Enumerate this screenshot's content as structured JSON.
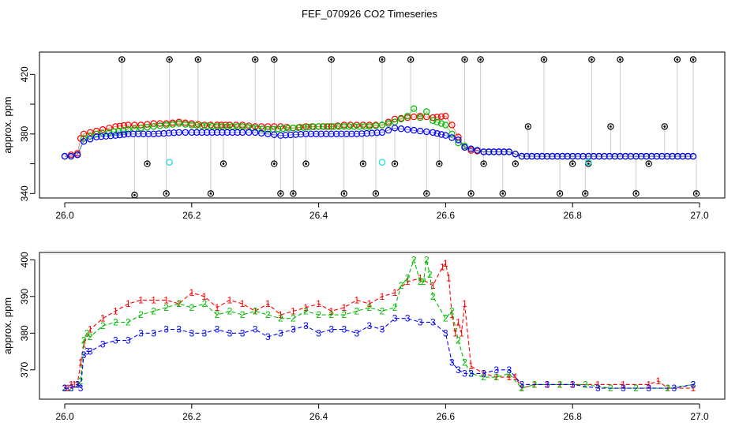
{
  "title": "FEF_070926  CO2 Timeseries",
  "colors": {
    "series1": "#ff0000",
    "series2": "#00bb00",
    "series3": "#0000ff",
    "outlier": "#000000",
    "flag": "#33dddd",
    "connector": "#999999"
  },
  "chart_data": [
    {
      "type": "scatter",
      "ylabel": "approx. ppm",
      "xlabel": "",
      "xlim": [
        26.0,
        27.0
      ],
      "ylim": [
        337,
        435
      ],
      "x_ticks": [
        26.0,
        26.2,
        26.4,
        26.6,
        26.8,
        27.0
      ],
      "x_tick_labels": [
        "26.0",
        "26.2",
        "26.4",
        "26.6",
        "26.8",
        "27.0"
      ],
      "y_ticks": [
        340,
        360,
        380,
        400,
        420
      ],
      "y_tick_labels": [
        "340",
        "",
        "380",
        "",
        "420"
      ],
      "marker": "circle",
      "series": [
        {
          "name": "1",
          "color": "#ff0000",
          "points": [
            [
              26.0,
              365
            ],
            [
              26.01,
              366
            ],
            [
              26.02,
              367
            ],
            [
              26.025,
              377
            ],
            [
              26.03,
              380
            ],
            [
              26.04,
              381
            ],
            [
              26.06,
              383
            ],
            [
              26.08,
              385
            ],
            [
              26.1,
              386
            ],
            [
              26.12,
              386
            ],
            [
              26.14,
              387
            ],
            [
              26.16,
              387
            ],
            [
              26.18,
              388
            ],
            [
              26.2,
              387
            ],
            [
              26.22,
              386
            ],
            [
              26.24,
              386
            ],
            [
              26.26,
              386
            ],
            [
              26.28,
              386
            ],
            [
              26.3,
              385
            ],
            [
              26.32,
              385
            ],
            [
              26.34,
              385
            ],
            [
              26.36,
              384
            ],
            [
              26.38,
              385
            ],
            [
              26.4,
              385
            ],
            [
              26.42,
              385
            ],
            [
              26.44,
              386
            ],
            [
              26.46,
              386
            ],
            [
              26.48,
              386
            ],
            [
              26.5,
              386
            ],
            [
              26.52,
              390
            ],
            [
              26.54,
              391
            ],
            [
              26.56,
              392
            ],
            [
              26.58,
              391
            ],
            [
              26.6,
              392
            ],
            [
              26.61,
              386
            ],
            [
              26.62,
              378
            ],
            [
              26.63,
              371
            ],
            [
              26.64,
              369
            ],
            [
              26.66,
              368
            ],
            [
              26.7,
              368
            ],
            [
              26.72,
              365
            ],
            [
              26.8,
              365
            ],
            [
              26.9,
              365
            ],
            [
              26.99,
              365
            ]
          ]
        },
        {
          "name": "2",
          "color": "#00bb00",
          "points": [
            [
              26.0,
              365
            ],
            [
              26.01,
              365
            ],
            [
              26.02,
              366
            ],
            [
              26.03,
              377
            ],
            [
              26.05,
              380
            ],
            [
              26.07,
              381
            ],
            [
              26.1,
              383
            ],
            [
              26.12,
              384
            ],
            [
              26.14,
              385
            ],
            [
              26.16,
              386
            ],
            [
              26.18,
              387
            ],
            [
              26.2,
              386
            ],
            [
              26.24,
              385
            ],
            [
              26.28,
              385
            ],
            [
              26.32,
              383
            ],
            [
              26.36,
              384
            ],
            [
              26.4,
              385
            ],
            [
              26.44,
              385
            ],
            [
              26.48,
              385
            ],
            [
              26.5,
              386
            ],
            [
              26.52,
              388
            ],
            [
              26.54,
              392
            ],
            [
              26.55,
              397
            ],
            [
              26.56,
              391
            ],
            [
              26.57,
              395
            ],
            [
              26.58,
              389
            ],
            [
              26.6,
              386
            ],
            [
              26.61,
              380
            ],
            [
              26.62,
              374
            ],
            [
              26.64,
              370
            ],
            [
              26.66,
              368
            ],
            [
              26.7,
              368
            ],
            [
              26.72,
              365
            ],
            [
              26.8,
              365
            ],
            [
              26.9,
              365
            ],
            [
              26.99,
              365
            ]
          ]
        },
        {
          "name": "3",
          "color": "#0000ff",
          "points": [
            [
              26.0,
              365
            ],
            [
              26.01,
              365
            ],
            [
              26.02,
              366
            ],
            [
              26.03,
              375
            ],
            [
              26.05,
              378
            ],
            [
              26.08,
              379
            ],
            [
              26.1,
              380
            ],
            [
              26.14,
              380
            ],
            [
              26.18,
              381
            ],
            [
              26.2,
              381
            ],
            [
              26.24,
              381
            ],
            [
              26.28,
              381
            ],
            [
              26.3,
              381
            ],
            [
              26.32,
              380
            ],
            [
              26.34,
              379
            ],
            [
              26.38,
              380
            ],
            [
              26.42,
              380
            ],
            [
              26.46,
              380
            ],
            [
              26.5,
              381
            ],
            [
              26.52,
              384
            ],
            [
              26.54,
              383
            ],
            [
              26.56,
              382
            ],
            [
              26.58,
              381
            ],
            [
              26.6,
              379
            ],
            [
              26.62,
              376
            ],
            [
              26.63,
              371
            ],
            [
              26.64,
              370
            ],
            [
              26.66,
              368
            ],
            [
              26.7,
              368
            ],
            [
              26.72,
              365
            ],
            [
              26.8,
              365
            ],
            [
              26.9,
              365
            ],
            [
              26.99,
              365
            ]
          ]
        },
        {
          "name": "outliers",
          "color": "#000000",
          "points": [
            [
              26.09,
              430
            ],
            [
              26.11,
              339
            ],
            [
              26.13,
              360
            ],
            [
              26.16,
              340
            ],
            [
              26.165,
              430
            ],
            [
              26.21,
              430
            ],
            [
              26.23,
              340
            ],
            [
              26.25,
              360
            ],
            [
              26.3,
              430
            ],
            [
              26.33,
              430
            ],
            [
              26.33,
              360
            ],
            [
              26.34,
              340
            ],
            [
              26.36,
              340
            ],
            [
              26.38,
              360
            ],
            [
              26.42,
              430
            ],
            [
              26.44,
              340
            ],
            [
              26.47,
              360
            ],
            [
              26.49,
              340
            ],
            [
              26.5,
              430
            ],
            [
              26.52,
              360
            ],
            [
              26.545,
              430
            ],
            [
              26.57,
              340
            ],
            [
              26.59,
              360
            ],
            [
              26.63,
              430
            ],
            [
              26.64,
              340
            ],
            [
              26.655,
              430
            ],
            [
              26.66,
              360
            ],
            [
              26.69,
              340
            ],
            [
              26.71,
              360
            ],
            [
              26.73,
              385
            ],
            [
              26.755,
              430
            ],
            [
              26.78,
              340
            ],
            [
              26.8,
              360
            ],
            [
              26.82,
              340
            ],
            [
              26.825,
              360
            ],
            [
              26.83,
              430
            ],
            [
              26.86,
              385
            ],
            [
              26.875,
              430
            ],
            [
              26.9,
              340
            ],
            [
              26.92,
              360
            ],
            [
              26.945,
              385
            ],
            [
              26.965,
              430
            ],
            [
              26.99,
              430
            ],
            [
              26.995,
              340
            ]
          ]
        },
        {
          "name": "flagged",
          "color": "#33dddd",
          "points": [
            [
              26.165,
              361
            ],
            [
              26.5,
              361
            ],
            [
              26.825,
              361
            ]
          ]
        }
      ]
    },
    {
      "type": "line",
      "ylabel": "approx. ppm",
      "xlabel": "",
      "xlim": [
        26.0,
        27.0
      ],
      "ylim": [
        362,
        402
      ],
      "x_ticks": [
        26.0,
        26.2,
        26.4,
        26.6,
        26.8,
        27.0
      ],
      "x_tick_labels": [
        "26.0",
        "26.2",
        "26.4",
        "26.6",
        "26.8",
        "27.0"
      ],
      "y_ticks": [
        370,
        380,
        390,
        400
      ],
      "y_tick_labels": [
        "370",
        "380",
        "390",
        "400"
      ],
      "marker": "series number",
      "series": [
        {
          "name": "1",
          "color": "#ff0000",
          "x": [
            26.0,
            26.005,
            26.01,
            26.015,
            26.02,
            26.025,
            26.03,
            26.04,
            26.06,
            26.08,
            26.1,
            26.12,
            26.14,
            26.16,
            26.18,
            26.2,
            26.22,
            26.24,
            26.26,
            26.28,
            26.3,
            26.32,
            26.34,
            26.36,
            26.38,
            26.4,
            26.42,
            26.44,
            26.46,
            26.48,
            26.5,
            26.52,
            26.54,
            26.56,
            26.58,
            26.595,
            26.6,
            26.605,
            26.61,
            26.615,
            26.62,
            26.625,
            26.63,
            26.64,
            26.66,
            26.68,
            26.7,
            26.71,
            26.72,
            26.74,
            26.76,
            26.78,
            26.8,
            26.84,
            26.88,
            26.92,
            26.935,
            26.95,
            26.99
          ],
          "y": [
            365,
            365,
            366,
            366,
            366,
            372,
            377,
            381,
            384,
            386,
            388,
            389,
            389,
            389,
            388,
            391,
            390,
            387,
            389,
            388,
            386,
            388,
            385,
            386,
            387,
            388,
            386,
            387,
            389,
            388,
            390,
            391,
            394,
            395,
            393,
            398,
            399,
            395,
            385,
            380,
            383,
            380,
            388,
            371,
            369,
            368,
            368,
            368,
            365,
            366,
            366,
            366,
            366,
            366,
            366,
            366,
            367,
            365,
            365
          ]
        },
        {
          "name": "2",
          "color": "#00bb00",
          "x": [
            26.0,
            26.01,
            26.02,
            26.025,
            26.03,
            26.035,
            26.04,
            26.06,
            26.08,
            26.1,
            26.12,
            26.14,
            26.16,
            26.18,
            26.2,
            26.22,
            26.24,
            26.26,
            26.28,
            26.3,
            26.32,
            26.34,
            26.36,
            26.38,
            26.4,
            26.42,
            26.44,
            26.46,
            26.48,
            26.5,
            26.52,
            26.53,
            26.54,
            26.55,
            26.56,
            26.565,
            26.57,
            26.575,
            26.58,
            26.6,
            26.61,
            26.62,
            26.63,
            26.64,
            26.66,
            26.68,
            26.7,
            26.72,
            26.74,
            26.78,
            26.82,
            26.86,
            26.9,
            26.95,
            26.99
          ],
          "y": [
            365,
            365,
            366,
            367,
            378,
            380,
            379,
            382,
            383,
            383,
            385,
            386,
            387,
            388,
            387,
            388,
            385,
            386,
            385,
            386,
            385,
            384,
            384,
            386,
            385,
            385,
            385,
            386,
            387,
            386,
            387,
            393,
            395,
            400,
            394,
            394,
            400,
            396,
            390,
            384,
            386,
            378,
            372,
            369,
            368,
            368,
            369,
            365,
            366,
            366,
            366,
            365,
            365,
            365,
            366
          ]
        },
        {
          "name": "3",
          "color": "#0000ff",
          "x": [
            26.0,
            26.01,
            26.02,
            26.025,
            26.03,
            26.035,
            26.04,
            26.06,
            26.08,
            26.1,
            26.12,
            26.14,
            26.16,
            26.18,
            26.2,
            26.22,
            26.24,
            26.26,
            26.28,
            26.3,
            26.32,
            26.34,
            26.36,
            26.38,
            26.4,
            26.42,
            26.44,
            26.46,
            26.48,
            26.5,
            26.52,
            26.54,
            26.56,
            26.58,
            26.6,
            26.61,
            26.62,
            26.63,
            26.64,
            26.66,
            26.68,
            26.7,
            26.72,
            26.76,
            26.8,
            26.84,
            26.88,
            26.92,
            26.96,
            26.99
          ],
          "y": [
            365,
            365,
            366,
            365,
            374,
            375,
            375,
            377,
            378,
            378,
            380,
            380,
            381,
            381,
            380,
            380,
            381,
            380,
            380,
            381,
            379,
            380,
            381,
            382,
            380,
            381,
            381,
            380,
            382,
            381,
            384,
            384,
            383,
            383,
            380,
            372,
            370,
            369,
            369,
            369,
            370,
            370,
            366,
            366,
            366,
            365,
            365,
            365,
            365,
            366
          ]
        }
      ]
    }
  ]
}
